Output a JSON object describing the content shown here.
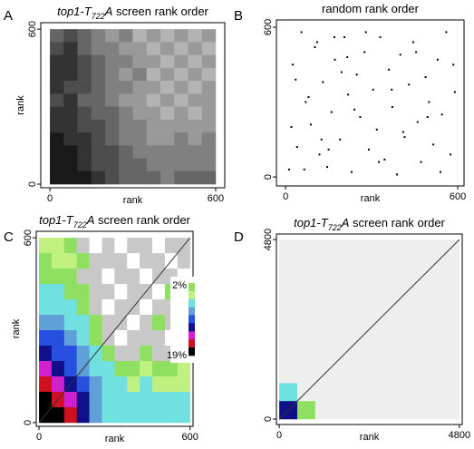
{
  "chart_data": [
    {
      "type": "heatmap",
      "panel": "A",
      "title": [
        "top1-T",
        "722",
        "A",
        " screen rank order"
      ],
      "title_styles": [
        "italic",
        "sub",
        "italic",
        "normal"
      ],
      "xlabel": "rank",
      "ylabel": "rank",
      "xlim": [
        -33,
        633
      ],
      "ylim": [
        -14,
        625
      ],
      "xticks": [
        0,
        600
      ],
      "yticks": [
        0,
        600
      ],
      "colors": [
        "#ffffff",
        "#e6e6e6",
        "#cccccc",
        "#b3b3b3",
        "#999999",
        "#808080",
        "#666666",
        "#4d4d4d",
        "#333333",
        "#1a1a1a"
      ],
      "grid": [
        [
          6,
          7,
          6,
          5,
          4,
          5,
          3,
          4,
          3,
          4,
          3,
          4
        ],
        [
          7,
          8,
          6,
          5,
          5,
          4,
          4,
          3,
          4,
          3,
          4,
          3
        ],
        [
          8,
          8,
          7,
          6,
          5,
          5,
          4,
          4,
          3,
          4,
          3,
          4
        ],
        [
          8,
          8,
          7,
          6,
          5,
          4,
          5,
          3,
          4,
          3,
          4,
          3
        ],
        [
          8,
          7,
          7,
          6,
          5,
          5,
          4,
          4,
          3,
          4,
          3,
          4
        ],
        [
          7,
          8,
          6,
          6,
          5,
          4,
          4,
          3,
          4,
          3,
          4,
          4
        ],
        [
          8,
          8,
          7,
          6,
          6,
          5,
          4,
          4,
          3,
          4,
          3,
          4
        ],
        [
          8,
          8,
          7,
          7,
          6,
          5,
          5,
          4,
          4,
          4,
          4,
          4
        ],
        [
          9,
          8,
          8,
          7,
          6,
          5,
          5,
          4,
          4,
          5,
          4,
          5
        ],
        [
          9,
          9,
          8,
          7,
          7,
          6,
          5,
          5,
          5,
          5,
          5,
          5
        ],
        [
          9,
          9,
          8,
          7,
          7,
          6,
          6,
          5,
          5,
          5,
          5,
          5
        ],
        [
          9,
          9,
          9,
          8,
          7,
          6,
          6,
          6,
          5,
          6,
          6,
          6
        ]
      ]
    },
    {
      "type": "scatter",
      "panel": "B",
      "title": [
        "random rank order"
      ],
      "title_styles": [
        "normal"
      ],
      "xlabel": "rank",
      "xlim": [
        -32,
        622
      ],
      "ylim": [
        -36,
        629
      ],
      "xticks": [
        0,
        600
      ],
      "yticks": [
        0,
        600
      ],
      "color": "#000000",
      "x": [
        12,
        25,
        40,
        55,
        70,
        88,
        102,
        118,
        130,
        145,
        160,
        172,
        190,
        205,
        218,
        230,
        248,
        260,
        275,
        290,
        305,
        318,
        330,
        345,
        360,
        372,
        388,
        400,
        415,
        430,
        445,
        460,
        472,
        488,
        500,
        515,
        530,
        545,
        560,
        575,
        590,
        20,
        65,
        110,
        150,
        195,
        240,
        280,
        325,
        370,
        410,
        455,
        495,
        540,
        585,
        35,
        80,
        125,
        170,
        215
      ],
      "y": [
        30,
        450,
        120,
        580,
        300,
        210,
        520,
        90,
        380,
        40,
        260,
        470,
        150,
        560,
        330,
        20,
        410,
        240,
        500,
        110,
        350,
        190,
        560,
        70,
        430,
        280,
        10,
        490,
        160,
        370,
        540,
        220,
        60,
        400,
        300,
        130,
        470,
        250,
        580,
        90,
        340,
        200,
        30,
        540,
        110,
        420,
        270,
        580,
        60,
        350,
        180,
        500,
        240,
        20,
        450,
        390,
        320,
        150,
        560,
        480
      ]
    },
    {
      "type": "heatmap",
      "panel": "C",
      "title": [
        "top1-T",
        "722",
        "A",
        " screen rank order"
      ],
      "title_styles": [
        "italic",
        "sub",
        "italic",
        "normal"
      ],
      "xlabel": "rank",
      "ylabel": "rank",
      "xlim": [
        -11,
        612
      ],
      "ylim": [
        -12,
        621
      ],
      "xticks": [
        0,
        600
      ],
      "yticks": [
        0,
        600
      ],
      "diagonal": true,
      "colorbar_labels": [
        "2%",
        "19%"
      ],
      "colors": [
        "#ffffff",
        "#c8c8c8",
        "#8fe060",
        "#c0f080",
        "#70e0e0",
        "#60a0d8",
        "#2850e0",
        "#10108a",
        "#d020d0",
        "#d01020",
        "#000000"
      ],
      "grid": [
        [
          3,
          3,
          2,
          1,
          0,
          1,
          0,
          1,
          1,
          0,
          1,
          1
        ],
        [
          2,
          3,
          3,
          2,
          1,
          1,
          1,
          0,
          1,
          1,
          0,
          1
        ],
        [
          2,
          2,
          2,
          1,
          1,
          0,
          1,
          1,
          0,
          1,
          1,
          0
        ],
        [
          4,
          4,
          2,
          2,
          1,
          1,
          0,
          1,
          1,
          0,
          2,
          1
        ],
        [
          4,
          4,
          4,
          2,
          1,
          0,
          1,
          1,
          0,
          1,
          1,
          1
        ],
        [
          5,
          5,
          4,
          4,
          2,
          1,
          1,
          0,
          1,
          2,
          1,
          0
        ],
        [
          6,
          6,
          5,
          4,
          2,
          1,
          0,
          1,
          1,
          1,
          0,
          1
        ],
        [
          7,
          6,
          6,
          5,
          4,
          2,
          1,
          1,
          2,
          1,
          1,
          1
        ],
        [
          8,
          7,
          6,
          5,
          4,
          4,
          2,
          2,
          3,
          2,
          2,
          3
        ],
        [
          9,
          8,
          7,
          6,
          5,
          4,
          4,
          3,
          4,
          3,
          3,
          3
        ],
        [
          10,
          9,
          8,
          7,
          5,
          4,
          4,
          4,
          4,
          4,
          4,
          4
        ],
        [
          10,
          10,
          9,
          7,
          5,
          4,
          4,
          4,
          4,
          4,
          4,
          4
        ]
      ]
    },
    {
      "type": "heatmap",
      "panel": "D",
      "title": [
        "top1-T",
        "722",
        "A",
        " screen rank order"
      ],
      "title_styles": [
        "italic",
        "sub",
        "italic",
        "normal"
      ],
      "xlabel": "rank",
      "xlim": [
        -75,
        4875
      ],
      "ylim": [
        -146,
        4948
      ],
      "xticks": [
        0,
        4800
      ],
      "yticks": [
        0,
        4800
      ],
      "diagonal": true,
      "colors": [
        "#eeeeee",
        "#8fe060",
        "#70e0e0",
        "#10108a"
      ],
      "grid": [
        [
          0,
          0,
          0,
          0,
          0,
          0,
          0,
          0,
          0,
          0
        ],
        [
          0,
          0,
          0,
          0,
          0,
          0,
          0,
          0,
          0,
          0
        ],
        [
          0,
          0,
          0,
          0,
          0,
          0,
          0,
          0,
          0,
          0
        ],
        [
          0,
          0,
          0,
          0,
          0,
          0,
          0,
          0,
          0,
          0
        ],
        [
          0,
          0,
          0,
          0,
          0,
          0,
          0,
          0,
          0,
          0
        ],
        [
          0,
          0,
          0,
          0,
          0,
          0,
          0,
          0,
          0,
          0
        ],
        [
          0,
          0,
          0,
          0,
          0,
          0,
          0,
          0,
          0,
          0
        ],
        [
          0,
          0,
          0,
          0,
          0,
          0,
          0,
          0,
          0,
          0
        ],
        [
          2,
          0,
          0,
          0,
          0,
          0,
          0,
          0,
          0,
          0
        ],
        [
          3,
          1,
          0,
          0,
          0,
          0,
          0,
          0,
          0,
          0
        ]
      ]
    }
  ]
}
